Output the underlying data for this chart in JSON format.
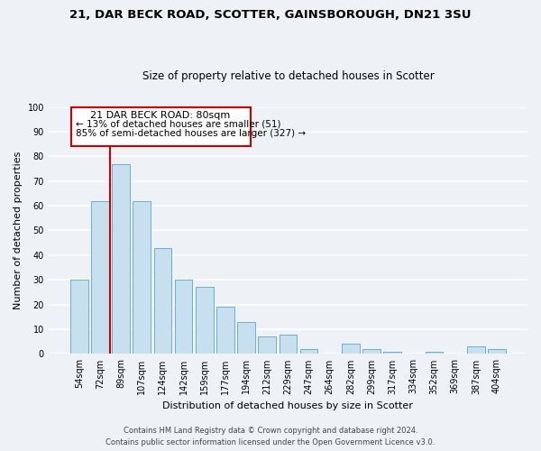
{
  "title": "21, DAR BECK ROAD, SCOTTER, GAINSBOROUGH, DN21 3SU",
  "subtitle": "Size of property relative to detached houses in Scotter",
  "xlabel": "Distribution of detached houses by size in Scotter",
  "ylabel": "Number of detached properties",
  "categories": [
    "54sqm",
    "72sqm",
    "89sqm",
    "107sqm",
    "124sqm",
    "142sqm",
    "159sqm",
    "177sqm",
    "194sqm",
    "212sqm",
    "229sqm",
    "247sqm",
    "264sqm",
    "282sqm",
    "299sqm",
    "317sqm",
    "334sqm",
    "352sqm",
    "369sqm",
    "387sqm",
    "404sqm"
  ],
  "values": [
    30,
    62,
    77,
    62,
    43,
    30,
    27,
    19,
    13,
    7,
    8,
    2,
    0,
    4,
    2,
    1,
    0,
    1,
    0,
    3,
    2
  ],
  "bar_color": "#c8dff0",
  "bar_edge_color": "#6aafd4",
  "ylim": [
    0,
    100
  ],
  "yticks": [
    0,
    10,
    20,
    30,
    40,
    50,
    60,
    70,
    80,
    90,
    100
  ],
  "property_line_label": "21 DAR BECK ROAD: 80sqm",
  "annotation_line1": "← 13% of detached houses are smaller (51)",
  "annotation_line2": "85% of semi-detached houses are larger (327) →",
  "annotation_box_color": "#ffffff",
  "annotation_box_edge_color": "#cc0000",
  "property_line_color": "#cc0000",
  "footer_line1": "Contains HM Land Registry data © Crown copyright and database right 2024.",
  "footer_line2": "Contains public sector information licensed under the Open Government Licence v3.0.",
  "background_color": "#eef2f7",
  "grid_color": "#ffffff",
  "title_fontsize": 9.5,
  "subtitle_fontsize": 8.5,
  "ylabel_fontsize": 8,
  "xlabel_fontsize": 8,
  "tick_fontsize": 7,
  "footer_fontsize": 6
}
